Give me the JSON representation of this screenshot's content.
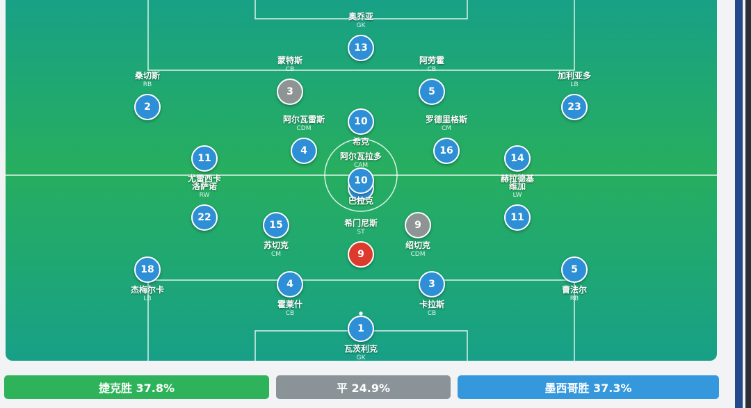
{
  "home_team": [
    {
      "name": "奥乔亚",
      "position": "GK",
      "number": "13"
    },
    {
      "name": "蒙特斯",
      "position": "CB",
      "number": "3"
    },
    {
      "name": "阿劳霍",
      "position": "CB",
      "number": "5"
    },
    {
      "name": "桑切斯",
      "position": "RB",
      "number": "2"
    },
    {
      "name": "加利亚多",
      "position": "LB",
      "number": "23"
    },
    {
      "name": "阿尔瓦雷斯",
      "position": "CDM",
      "number": "4"
    },
    {
      "name": "罗德里格斯",
      "position": "CM",
      "number": "16"
    },
    {
      "name": "阿尔瓦拉多",
      "position": "CAM",
      "number": "10"
    },
    {
      "name": "洛萨诺",
      "position": "RW",
      "number": "22"
    },
    {
      "name": "维加",
      "position": "LW",
      "number": "11"
    },
    {
      "name": "希门尼斯",
      "position": "ST",
      "number": "9"
    }
  ],
  "away_team": [
    {
      "name": "瓦茨利克",
      "position": "GK",
      "number": "1"
    },
    {
      "name": "杰梅尔卡",
      "position": "LB",
      "number": "18"
    },
    {
      "name": "霍莱什",
      "position": "CB",
      "number": "4"
    },
    {
      "name": "卡拉斯",
      "position": "CB",
      "number": "3"
    },
    {
      "name": "曹法尔",
      "position": "RB",
      "number": "5"
    },
    {
      "name": "苏切克",
      "position": "CM",
      "number": "15"
    },
    {
      "name": "绍切克",
      "position": "CDM",
      "number": "9"
    },
    {
      "name": "巴拉克",
      "number": "10"
    },
    {
      "name": "尤雷西卡",
      "number": "11"
    },
    {
      "name": "赫拉德基",
      "number": "14"
    },
    {
      "name": "希克",
      "number": "10"
    }
  ],
  "outcomes": [
    {
      "label": "捷克胜 37.8%"
    },
    {
      "label": "平 24.9%"
    },
    {
      "label": "墨西哥胜 37.3%"
    }
  ]
}
